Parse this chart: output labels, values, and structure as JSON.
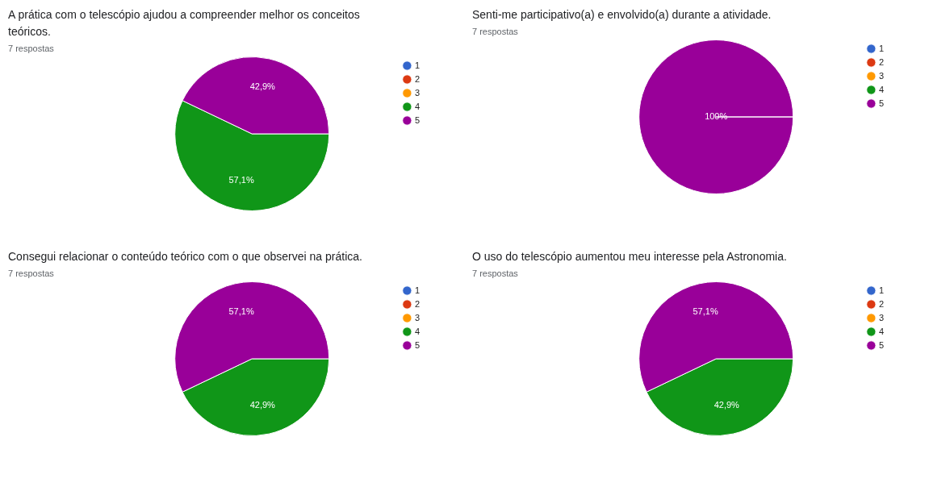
{
  "chart_data": [
    {
      "type": "pie",
      "title": "A prática com o telescópio ajudou a compreender melhor os conceitos teóricos.",
      "subtitle": "7 respostas",
      "categories": [
        "1",
        "2",
        "3",
        "4",
        "5"
      ],
      "values": [
        0,
        0,
        0,
        57.1,
        42.9
      ],
      "colors": [
        "#3366cc",
        "#dc3912",
        "#ff9900",
        "#109618",
        "#990099"
      ],
      "value_labels": [
        null,
        null,
        null,
        "57,1%",
        "42,9%"
      ],
      "legend": "right"
    },
    {
      "type": "pie",
      "title": "Senti-me participativo(a) e envolvido(a) durante a atividade.",
      "subtitle": "7 respostas",
      "categories": [
        "1",
        "2",
        "3",
        "4",
        "5"
      ],
      "values": [
        0,
        0,
        0,
        0,
        100
      ],
      "colors": [
        "#3366cc",
        "#dc3912",
        "#ff9900",
        "#109618",
        "#990099"
      ],
      "value_labels": [
        null,
        null,
        null,
        null,
        "100%"
      ],
      "legend": "right"
    },
    {
      "type": "pie",
      "title": "Consegui relacionar o conteúdo teórico com o que observei na prática.",
      "subtitle": "7 respostas",
      "categories": [
        "1",
        "2",
        "3",
        "4",
        "5"
      ],
      "values": [
        0,
        0,
        0,
        42.9,
        57.1
      ],
      "colors": [
        "#3366cc",
        "#dc3912",
        "#ff9900",
        "#109618",
        "#990099"
      ],
      "value_labels": [
        null,
        null,
        null,
        "42,9%",
        "57,1%"
      ],
      "legend": "right"
    },
    {
      "type": "pie",
      "title": "O uso do telescópio aumentou meu interesse pela Astronomia.",
      "subtitle": "7 respostas",
      "categories": [
        "1",
        "2",
        "3",
        "4",
        "5"
      ],
      "values": [
        0,
        0,
        0,
        42.9,
        57.1
      ],
      "colors": [
        "#3366cc",
        "#dc3912",
        "#ff9900",
        "#109618",
        "#990099"
      ],
      "value_labels": [
        null,
        null,
        null,
        "42,9%",
        "57,1%"
      ],
      "legend": "right"
    }
  ]
}
